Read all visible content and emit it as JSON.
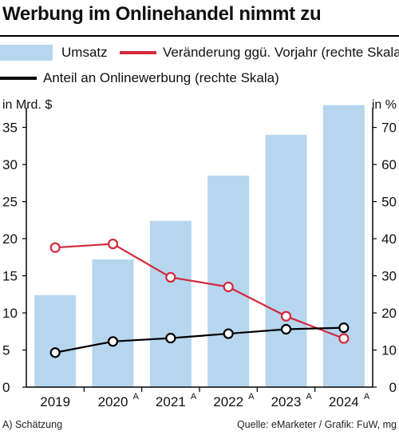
{
  "title": "Werbung im Onlinehandel nimmt zu",
  "legend": {
    "umsatz": "Umsatz",
    "veraenderung": "Veränderung ggü. Vorjahr (rechte Skala)",
    "anteil": "Anteil an Onlinewerbung (rechte Skala)"
  },
  "colors": {
    "bar": "#b6d6f0",
    "change": "#d2283a",
    "share": "#000000",
    "axis": "#000000"
  },
  "footer": {
    "note": "A) Schätzung",
    "source": "Quelle: eMarketer / Grafik: FuW, mg"
  },
  "chart_data": {
    "type": "bar",
    "categories": [
      "2019",
      "2020",
      "2021",
      "2022",
      "2023",
      "2024"
    ],
    "category_superscripts": [
      "",
      "A",
      "A",
      "A",
      "A",
      "A"
    ],
    "y_left": {
      "label": "in Mrd. $",
      "lim": [
        0,
        37
      ],
      "ticks": [
        0,
        5,
        10,
        15,
        20,
        25,
        30,
        35
      ]
    },
    "y_right": {
      "label": "in %",
      "lim": [
        0,
        74
      ],
      "ticks": [
        0,
        10,
        20,
        30,
        40,
        50,
        60,
        70
      ]
    },
    "series": [
      {
        "name": "Umsatz",
        "type": "bar",
        "axis": "left",
        "values": [
          12.4,
          17.2,
          22.4,
          28.5,
          34.0,
          38.0
        ]
      },
      {
        "name": "Veränderung ggü. Vorjahr (rechte Skala)",
        "type": "line",
        "axis": "right",
        "values": [
          37.6,
          38.6,
          29.6,
          27.0,
          19.1,
          13.1
        ]
      },
      {
        "name": "Anteil an Onlinewerbung (rechte Skala)",
        "type": "line",
        "axis": "right",
        "values": [
          9.3,
          12.3,
          13.2,
          14.4,
          15.6,
          16.0
        ]
      }
    ],
    "grid": false,
    "legend_position": "top-left"
  }
}
